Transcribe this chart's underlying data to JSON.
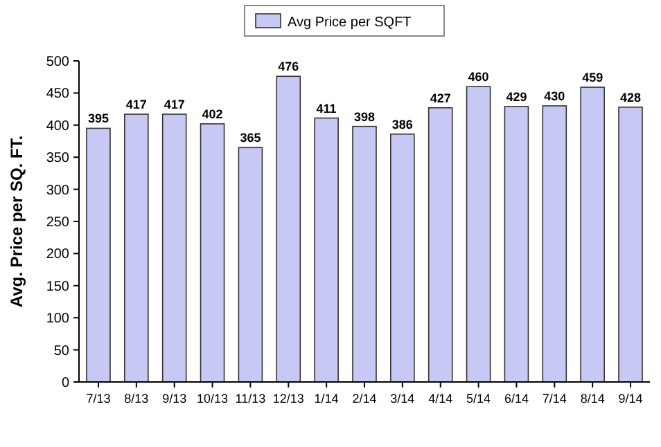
{
  "chart_data": {
    "type": "bar",
    "ylabel": "Avg. Price per SQ. FT.",
    "categories": [
      "7/13",
      "8/13",
      "9/13",
      "10/13",
      "11/13",
      "12/13",
      "1/14",
      "2/14",
      "3/14",
      "4/14",
      "5/14",
      "6/14",
      "7/14",
      "8/14",
      "9/14"
    ],
    "series": [
      {
        "name": "Avg Price per SQFT",
        "color": "#c8c8f4",
        "values": [
          395,
          417,
          417,
          402,
          365,
          476,
          411,
          398,
          386,
          427,
          460,
          429,
          430,
          459,
          428
        ]
      }
    ],
    "ylim": [
      0,
      500
    ],
    "yticks": [
      0,
      50,
      100,
      150,
      200,
      250,
      300,
      350,
      400,
      450,
      500
    ],
    "data_labels": true,
    "legend": "top",
    "grid": false
  }
}
